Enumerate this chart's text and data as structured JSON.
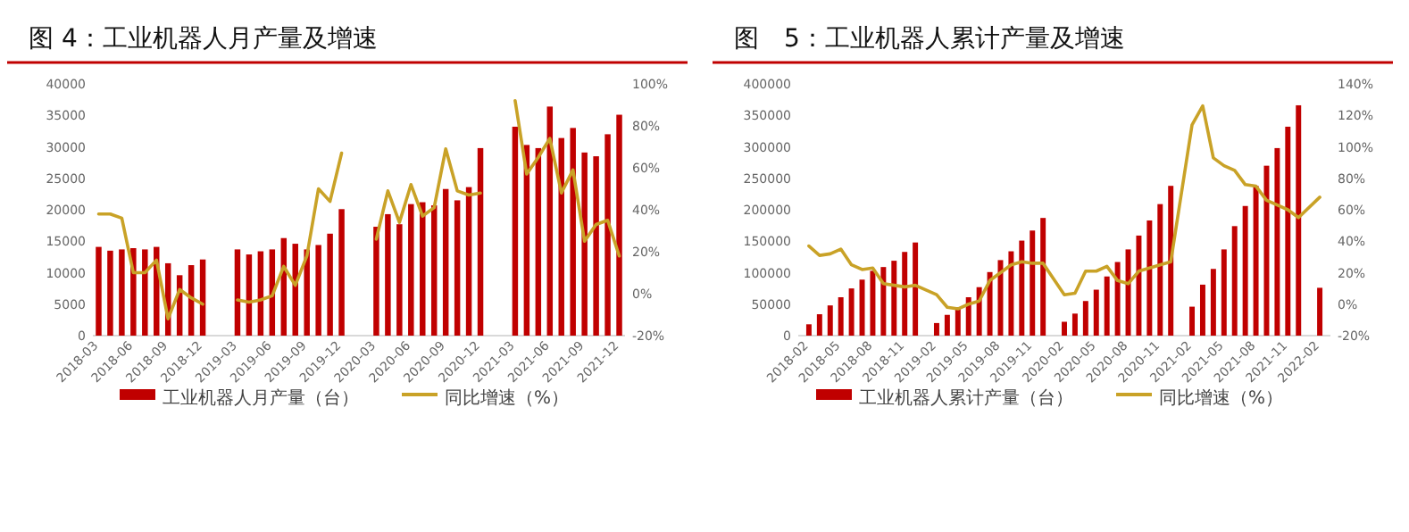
{
  "chart_data": [
    {
      "type": "bar",
      "title": "图 4：工业机器人月产量及增速",
      "categories": [
        "2018-03",
        null,
        null,
        "2018-06",
        null,
        null,
        "2018-09",
        null,
        null,
        "2018-12",
        null,
        null,
        "2019-03",
        null,
        null,
        "2019-06",
        null,
        null,
        "2019-09",
        null,
        null,
        "2019-12",
        null,
        null,
        "2020-03",
        null,
        null,
        "2020-06",
        null,
        null,
        "2020-09",
        null,
        null,
        "2020-12",
        null,
        null,
        "2021-03",
        null,
        null,
        "2021-06",
        null,
        null,
        "2021-09",
        null,
        null,
        "2021-12"
      ],
      "series": [
        {
          "name": "工业机器人月产量（台）",
          "type": "bar",
          "color": "#c00000",
          "values": [
            14100,
            13500,
            13700,
            13900,
            13700,
            14100,
            11500,
            9600,
            11200,
            12100,
            null,
            null,
            13700,
            12900,
            13400,
            13700,
            15500,
            14600,
            13700,
            14400,
            16200,
            20100,
            null,
            null,
            17300,
            19300,
            17700,
            20900,
            21200,
            20700,
            23300,
            21500,
            23600,
            29800,
            null,
            null,
            33200,
            30300,
            29800,
            36400,
            31400,
            33000,
            29100,
            28500,
            32000,
            35100
          ]
        },
        {
          "name": "同比增速（%）",
          "type": "line",
          "axis": "y2",
          "color": "#c9a227",
          "values": [
            38,
            38,
            36,
            10,
            10,
            16,
            -12,
            2,
            -2,
            -5,
            null,
            null,
            -3,
            -4,
            -3,
            -1,
            13,
            4,
            18,
            50,
            44,
            67,
            null,
            null,
            26,
            49,
            34,
            52,
            37,
            41,
            69,
            49,
            47,
            48,
            null,
            null,
            92,
            57,
            65,
            74,
            48,
            59,
            25,
            33,
            35,
            18
          ]
        }
      ],
      "ylim": [
        0,
        40000
      ],
      "yticks": [
        0,
        5000,
        10000,
        15000,
        20000,
        25000,
        30000,
        35000,
        40000
      ],
      "y2lim": [
        -20,
        100
      ],
      "y2ticks": [
        {
          "value": -20,
          "label": "-20%"
        },
        {
          "value": 0,
          "label": "0%"
        },
        {
          "value": 20,
          "label": "20%"
        },
        {
          "value": 40,
          "label": "40%"
        },
        {
          "value": 60,
          "label": "60%"
        },
        {
          "value": 80,
          "label": "80%"
        },
        {
          "value": 100,
          "label": "100%"
        }
      ],
      "legend": "bottom"
    },
    {
      "type": "bar",
      "title": "图　5：工业机器人累计产量及增速",
      "x": [
        "2018-02",
        "2018-03",
        "2018-04",
        "2018-05",
        "2018-06",
        "2018-07",
        "2018-08",
        "2018-09",
        "2018-10",
        "2018-11",
        "2018-12",
        "2019-02",
        "2019-03",
        "2019-04",
        "2019-05",
        "2019-06",
        "2019-07",
        "2019-08",
        "2019-09",
        "2019-10",
        "2019-11",
        "2019-12",
        "2020-02",
        "2020-03",
        "2020-04",
        "2020-05",
        "2020-06",
        "2020-07",
        "2020-08",
        "2020-09",
        "2020-10",
        "2020-11",
        "2020-12",
        "2021-02",
        "2021-03",
        "2021-04",
        "2021-05",
        "2021-06",
        "2021-07",
        "2021-08",
        "2021-09",
        "2021-10",
        "2021-11",
        "2021-12",
        "2022-02"
      ],
      "xlim": [
        "2018-01",
        "2022-03"
      ],
      "xticks": [
        "2018-02",
        "2018-05",
        "2018-08",
        "2018-11",
        "2019-02",
        "2019-05",
        "2019-08",
        "2019-11",
        "2020-02",
        "2020-05",
        "2020-08",
        "2020-11",
        "2021-02",
        "2021-05",
        "2021-08",
        "2021-11",
        "2022-02"
      ],
      "series": [
        {
          "name": "工业机器人累计产量（台）",
          "type": "bar",
          "color": "#c00000",
          "values": [
            18000,
            34000,
            48000,
            61000,
            75000,
            89000,
            103000,
            109000,
            119000,
            133000,
            148000,
            20000,
            33000,
            45000,
            61000,
            77000,
            101000,
            120000,
            134000,
            151000,
            167000,
            187000,
            22000,
            35000,
            55000,
            73000,
            94000,
            117000,
            137000,
            159000,
            183000,
            209000,
            238000,
            46000,
            81000,
            106000,
            137000,
            174000,
            206000,
            238000,
            270000,
            298000,
            332000,
            366000,
            76000
          ]
        },
        {
          "name": "同比增速（%）",
          "type": "line",
          "axis": "y2",
          "color": "#c9a227",
          "x": [
            "2018-02",
            "2018-03",
            "2018-04",
            "2018-05",
            "2018-06",
            "2018-07",
            "2018-08",
            "2018-09",
            "2018-10",
            "2018-11",
            "2018-12",
            "2019-02",
            "2019-03",
            "2019-04",
            "2019-05",
            "2019-06",
            "2019-07",
            "2019-08",
            "2019-09",
            "2019-10",
            "2019-11",
            "2019-12",
            "2020-02",
            "2020-03",
            "2020-04",
            "2020-05",
            "2020-06",
            "2020-07",
            "2020-08",
            "2020-09",
            "2020-10",
            "2020-11",
            "2020-12",
            "2021-02",
            "2021-03",
            "2021-04",
            "2021-05",
            "2021-06",
            "2021-07",
            "2021-08",
            "2021-09",
            "2021-10",
            "2021-11",
            "2021-12",
            "2022-02"
          ],
          "values": [
            37,
            31,
            32,
            35,
            25,
            22,
            23,
            13,
            12,
            11,
            12,
            6,
            -2,
            -3,
            0,
            2,
            15,
            20,
            25,
            27,
            26,
            26,
            6,
            7,
            21,
            21,
            24,
            15,
            13,
            21,
            23,
            25,
            27,
            114,
            126,
            93,
            88,
            85,
            76,
            75,
            66,
            63,
            60,
            55,
            68
          ]
        }
      ],
      "ylim": [
        0,
        400000
      ],
      "yticks": [
        0,
        50000,
        100000,
        150000,
        200000,
        250000,
        300000,
        350000,
        400000
      ],
      "y2lim": [
        -20,
        140
      ],
      "y2ticks": [
        {
          "value": -20,
          "label": "-20%"
        },
        {
          "value": 0,
          "label": "0%"
        },
        {
          "value": 20,
          "label": "20%"
        },
        {
          "value": 40,
          "label": "40%"
        },
        {
          "value": 60,
          "label": "60%"
        },
        {
          "value": 80,
          "label": "80%"
        },
        {
          "value": 100,
          "label": "100%"
        },
        {
          "value": 120,
          "label": "120%"
        },
        {
          "value": 140,
          "label": "140%"
        }
      ],
      "legend": "bottom"
    }
  ]
}
